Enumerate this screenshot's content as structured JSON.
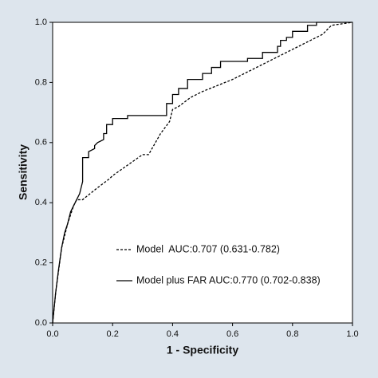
{
  "chart_data": {
    "type": "line",
    "x_label": "1 - Specificity",
    "y_label": "Sensitivity",
    "xlim": [
      0,
      1
    ],
    "ylim": [
      0,
      1
    ],
    "xticks": [
      {
        "value": 0,
        "label": "0.0"
      },
      0.2,
      0.4,
      0.6,
      0.8,
      {
        "value": 1,
        "label": "1.0"
      }
    ],
    "yticks": [
      {
        "value": 0,
        "label": "0.0"
      },
      0.2,
      0.4,
      0.6,
      0.8,
      {
        "value": 1,
        "label": "1.0"
      }
    ],
    "series": [
      {
        "name": "Model  AUC:0.707 (0.631-0.782)",
        "color": "#000000",
        "dashed": true,
        "x": [
          0,
          0.01,
          0.03,
          0.05,
          0.07,
          0.08,
          0.1,
          0.15,
          0.19,
          0.2,
          0.3,
          0.32,
          0.36,
          0.39,
          0.4,
          0.42,
          0.46,
          0.5,
          0.6,
          0.7,
          0.8,
          0.9,
          0.93,
          1
        ],
        "values": [
          0,
          0.1,
          0.25,
          0.33,
          0.39,
          0.41,
          0.41,
          0.45,
          0.48,
          0.49,
          0.56,
          0.56,
          0.63,
          0.67,
          0.71,
          0.72,
          0.75,
          0.77,
          0.81,
          0.86,
          0.91,
          0.96,
          0.99,
          1
        ]
      },
      {
        "name": "Model plus FAR AUC:0.770 (0.702-0.838)",
        "color": "#000000",
        "dashed": false,
        "x": [
          0,
          0.005,
          0.01,
          0.02,
          0.03,
          0.04,
          0.05,
          0.06,
          0.07,
          0.08,
          0.09,
          0.1,
          0.1,
          0.12,
          0.12,
          0.14,
          0.14,
          0.15,
          0.17,
          0.17,
          0.18,
          0.18,
          0.2,
          0.2,
          0.25,
          0.25,
          0.38,
          0.38,
          0.4,
          0.4,
          0.42,
          0.42,
          0.45,
          0.45,
          0.5,
          0.5,
          0.53,
          0.53,
          0.56,
          0.56,
          0.65,
          0.65,
          0.7,
          0.7,
          0.75,
          0.75,
          0.76,
          0.76,
          0.78,
          0.78,
          0.8,
          0.8,
          0.85,
          0.85,
          0.88,
          0.88,
          1
        ],
        "values": [
          0,
          0.05,
          0.1,
          0.18,
          0.25,
          0.3,
          0.33,
          0.37,
          0.39,
          0.41,
          0.43,
          0.47,
          0.55,
          0.55,
          0.57,
          0.58,
          0.59,
          0.6,
          0.61,
          0.63,
          0.63,
          0.66,
          0.66,
          0.68,
          0.68,
          0.69,
          0.69,
          0.73,
          0.73,
          0.76,
          0.76,
          0.78,
          0.78,
          0.81,
          0.81,
          0.83,
          0.83,
          0.85,
          0.85,
          0.87,
          0.87,
          0.88,
          0.88,
          0.9,
          0.9,
          0.92,
          0.92,
          0.94,
          0.94,
          0.95,
          0.95,
          0.97,
          0.97,
          0.99,
          0.99,
          1,
          1
        ]
      }
    ]
  }
}
